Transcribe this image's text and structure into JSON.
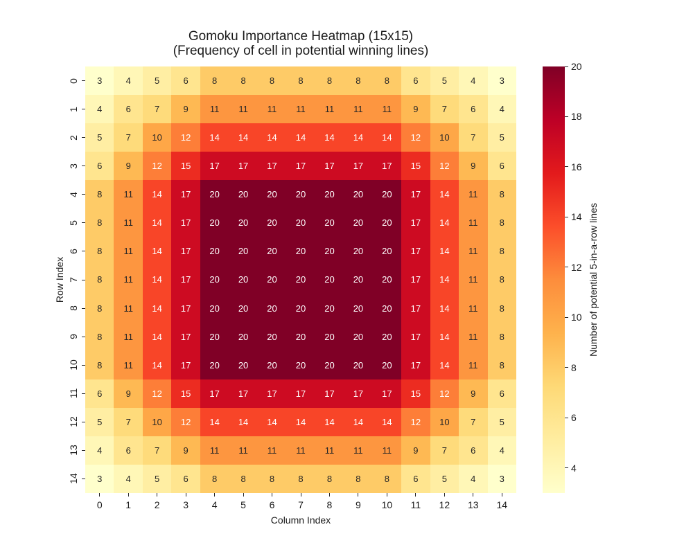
{
  "figure": {
    "title_line1": "Gomoku Importance Heatmap (15x15)",
    "title_line2": "(Frequency of cell in potential winning lines)"
  },
  "chart_data": {
    "type": "heatmap",
    "title": "Gomoku Importance Heatmap (15x15)\n(Frequency of cell in potential winning lines)",
    "xlabel": "Column Index",
    "ylabel": "Row Index",
    "x_tick_labels": [
      "0",
      "1",
      "2",
      "3",
      "4",
      "5",
      "6",
      "7",
      "8",
      "9",
      "10",
      "11",
      "12",
      "13",
      "14"
    ],
    "y_tick_labels": [
      "0",
      "1",
      "2",
      "3",
      "4",
      "5",
      "6",
      "7",
      "8",
      "9",
      "10",
      "11",
      "12",
      "13",
      "14"
    ],
    "matrix": [
      [
        3,
        4,
        5,
        6,
        8,
        8,
        8,
        8,
        8,
        8,
        8,
        6,
        5,
        4,
        3
      ],
      [
        4,
        6,
        7,
        9,
        11,
        11,
        11,
        11,
        11,
        11,
        11,
        9,
        7,
        6,
        4
      ],
      [
        5,
        7,
        10,
        12,
        14,
        14,
        14,
        14,
        14,
        14,
        14,
        12,
        10,
        7,
        5
      ],
      [
        6,
        9,
        12,
        15,
        17,
        17,
        17,
        17,
        17,
        17,
        17,
        15,
        12,
        9,
        6
      ],
      [
        8,
        11,
        14,
        17,
        20,
        20,
        20,
        20,
        20,
        20,
        20,
        17,
        14,
        11,
        8
      ],
      [
        8,
        11,
        14,
        17,
        20,
        20,
        20,
        20,
        20,
        20,
        20,
        17,
        14,
        11,
        8
      ],
      [
        8,
        11,
        14,
        17,
        20,
        20,
        20,
        20,
        20,
        20,
        20,
        17,
        14,
        11,
        8
      ],
      [
        8,
        11,
        14,
        17,
        20,
        20,
        20,
        20,
        20,
        20,
        20,
        17,
        14,
        11,
        8
      ],
      [
        8,
        11,
        14,
        17,
        20,
        20,
        20,
        20,
        20,
        20,
        20,
        17,
        14,
        11,
        8
      ],
      [
        8,
        11,
        14,
        17,
        20,
        20,
        20,
        20,
        20,
        20,
        20,
        17,
        14,
        11,
        8
      ],
      [
        8,
        11,
        14,
        17,
        20,
        20,
        20,
        20,
        20,
        20,
        20,
        17,
        14,
        11,
        8
      ],
      [
        6,
        9,
        12,
        15,
        17,
        17,
        17,
        17,
        17,
        17,
        17,
        15,
        12,
        9,
        6
      ],
      [
        5,
        7,
        10,
        12,
        14,
        14,
        14,
        14,
        14,
        14,
        14,
        12,
        10,
        7,
        5
      ],
      [
        4,
        6,
        7,
        9,
        11,
        11,
        11,
        11,
        11,
        11,
        11,
        9,
        7,
        6,
        4
      ],
      [
        3,
        4,
        5,
        6,
        8,
        8,
        8,
        8,
        8,
        8,
        8,
        6,
        5,
        4,
        3
      ]
    ],
    "vmin": 3,
    "vmax": 20,
    "colormap": "YlOrRd",
    "annotated": true,
    "grid": false,
    "colorbar": {
      "label": "Number of potential 5-in-a-row lines",
      "ticks": [
        4,
        6,
        8,
        10,
        12,
        14,
        16,
        18,
        20
      ]
    }
  },
  "style": {
    "value_colors": {
      "3": "#ffffcc",
      "4": "#fff7b7",
      "5": "#ffeea3",
      "6": "#ffe58f",
      "7": "#fedb7b",
      "8": "#fecb67",
      "9": "#feb953",
      "10": "#fea747",
      "11": "#fd9640",
      "12": "#fd7e38",
      "14": "#f84528",
      "15": "#ec2c21",
      "17": "#cd0b22",
      "20": "#800026"
    },
    "colormap_stops": [
      "#ffffcc",
      "#ffeda0",
      "#fed976",
      "#feb24c",
      "#fd8d3c",
      "#fc4e2a",
      "#e31a1c",
      "#bd0026",
      "#800026"
    ],
    "annot_dark": "#262626",
    "annot_white": "#ffffff",
    "white_text_min_value": 12
  }
}
